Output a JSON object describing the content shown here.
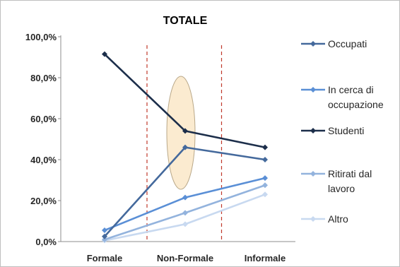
{
  "chart_data": {
    "type": "line",
    "title": "TOTALE",
    "xlabel": "",
    "ylabel": "",
    "categories": [
      "Formale",
      "Non-Formale",
      "Informale"
    ],
    "ylim": [
      0,
      100
    ],
    "y_ticks": [
      "0,0%",
      "20,0%",
      "40,0%",
      "60,0%",
      "80,0%",
      "100,0%"
    ],
    "grid": false,
    "legend_position": "right",
    "series": [
      {
        "name": "Occupati",
        "values": [
          2.5,
          46.0,
          40.0
        ],
        "color": "#44699C"
      },
      {
        "name": "In cerca di occupazione",
        "values": [
          5.5,
          21.5,
          31.0
        ],
        "color": "#5A8FD6"
      },
      {
        "name": "Studenti",
        "values": [
          91.5,
          54.0,
          46.0
        ],
        "color": "#1C2E4A"
      },
      {
        "name": "Ritirati dal lavoro",
        "values": [
          1.0,
          14.0,
          27.5
        ],
        "color": "#93B3DD"
      },
      {
        "name": "Altro",
        "values": [
          0.5,
          8.5,
          23.0
        ],
        "color": "#C8D9F0"
      }
    ],
    "annotations": {
      "dashed_separators": 2,
      "separator_color": "#C0392B",
      "highlight_ellipse_fill": "#FBEBD0",
      "highlight_ellipse_stroke": "#B9A889"
    }
  }
}
